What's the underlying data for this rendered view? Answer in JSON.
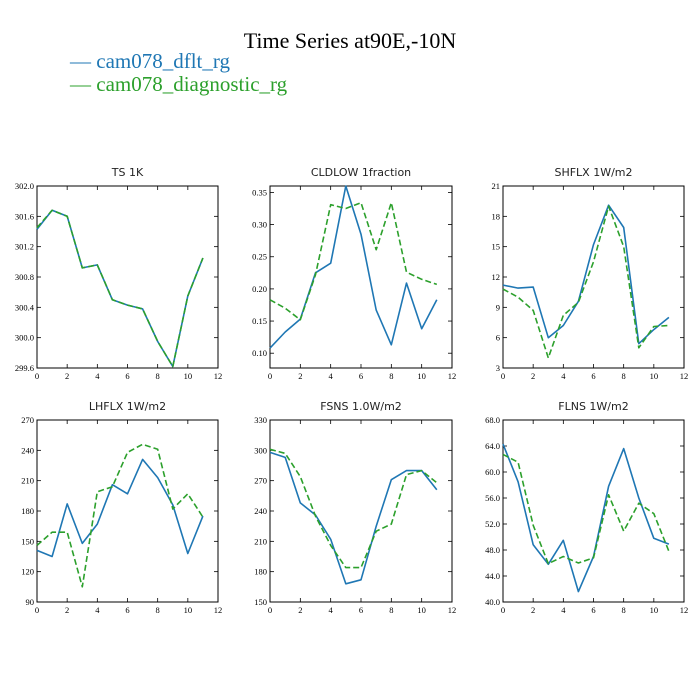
{
  "title": "Time Series at90E,-10N",
  "legend": [
    {
      "label": "— cam078_dflt_rg",
      "color": "#1f77b4"
    },
    {
      "label": "— cam078_diagnostic_rg",
      "color": "#2ca02c"
    }
  ],
  "chart_data": [
    {
      "type": "line",
      "title": "TS   1K",
      "x": [
        0,
        1,
        2,
        3,
        4,
        5,
        6,
        7,
        8,
        9,
        10,
        11
      ],
      "xlim": [
        0,
        12
      ],
      "xticks": [
        "0",
        "2",
        "4",
        "6",
        "8",
        "10",
        "12"
      ],
      "ylim": [
        299.6,
        302.0
      ],
      "yticks": [
        "299.6",
        "300.0",
        "300.4",
        "300.8",
        "301.2",
        "301.6",
        "302.0"
      ],
      "series": [
        {
          "name": "cam078_dflt_rg",
          "color": "#1f77b4",
          "dash": "",
          "values": [
            301.43,
            301.68,
            301.6,
            300.92,
            300.96,
            300.5,
            300.43,
            300.38,
            299.95,
            299.62,
            300.55,
            301.05
          ]
        },
        {
          "name": "cam078_diagnostic_rg",
          "color": "#2ca02c",
          "dash": "6,3",
          "values": [
            301.45,
            301.68,
            301.6,
            300.92,
            300.96,
            300.5,
            300.43,
            300.38,
            299.95,
            299.62,
            300.55,
            301.05
          ]
        }
      ]
    },
    {
      "type": "line",
      "title": "CLDLOW   1fraction",
      "x": [
        0,
        1,
        2,
        3,
        4,
        5,
        6,
        7,
        8,
        9,
        10,
        11
      ],
      "xlim": [
        0,
        12
      ],
      "xticks": [
        "0",
        "2",
        "4",
        "6",
        "8",
        "10",
        "12"
      ],
      "ylim": [
        0.077,
        0.36
      ],
      "yticks": [
        "0.10",
        "0.15",
        "0.20",
        "0.25",
        "0.30",
        "0.35"
      ],
      "ytick_values": [
        0.1,
        0.15,
        0.2,
        0.25,
        0.3,
        0.35
      ],
      "series": [
        {
          "name": "cam078_dflt_rg",
          "color": "#1f77b4",
          "dash": "",
          "values": [
            0.108,
            0.133,
            0.153,
            0.225,
            0.24,
            0.36,
            0.285,
            0.167,
            0.113,
            0.209,
            0.138,
            0.183
          ]
        },
        {
          "name": "cam078_diagnostic_rg",
          "color": "#2ca02c",
          "dash": "6,3",
          "values": [
            0.183,
            0.17,
            0.152,
            0.222,
            0.331,
            0.325,
            0.334,
            0.261,
            0.334,
            0.226,
            0.215,
            0.207
          ]
        }
      ]
    },
    {
      "type": "line",
      "title": "SHFLX   1W/m2",
      "x": [
        0,
        1,
        2,
        3,
        4,
        5,
        6,
        7,
        8,
        9,
        10,
        11
      ],
      "xlim": [
        0,
        12
      ],
      "xticks": [
        "0",
        "2",
        "4",
        "6",
        "8",
        "10",
        "12"
      ],
      "ylim": [
        3,
        21
      ],
      "yticks": [
        "3",
        "6",
        "9",
        "12",
        "15",
        "18",
        "21"
      ],
      "series": [
        {
          "name": "cam078_dflt_rg",
          "color": "#1f77b4",
          "dash": "",
          "values": [
            11.2,
            10.9,
            11.0,
            6.0,
            7.2,
            9.6,
            15.2,
            19.1,
            16.9,
            5.4,
            6.8,
            8.0
          ]
        },
        {
          "name": "cam078_diagnostic_rg",
          "color": "#2ca02c",
          "dash": "6,3",
          "values": [
            10.8,
            10.0,
            8.7,
            4.0,
            8.2,
            9.5,
            13.5,
            19.0,
            15.0,
            5.0,
            7.1,
            7.2
          ]
        }
      ]
    },
    {
      "type": "line",
      "title": "LHFLX   1W/m2",
      "x": [
        0,
        1,
        2,
        3,
        4,
        5,
        6,
        7,
        8,
        9,
        10,
        11
      ],
      "xlim": [
        0,
        12
      ],
      "xticks": [
        "0",
        "2",
        "4",
        "6",
        "8",
        "10",
        "12"
      ],
      "ylim": [
        90,
        270
      ],
      "yticks": [
        "90",
        "120",
        "150",
        "180",
        "210",
        "240",
        "270"
      ],
      "series": [
        {
          "name": "cam078_dflt_rg",
          "color": "#1f77b4",
          "dash": "",
          "values": [
            141,
            135,
            187,
            148,
            167,
            206,
            197,
            231,
            213,
            186,
            138,
            175
          ]
        },
        {
          "name": "cam078_diagnostic_rg",
          "color": "#2ca02c",
          "dash": "6,3",
          "values": [
            146,
            159,
            159,
            105,
            199,
            204,
            238,
            246,
            241,
            182,
            197,
            174
          ]
        }
      ]
    },
    {
      "type": "line",
      "title": "FSNS   1.0W/m2",
      "x": [
        0,
        1,
        2,
        3,
        4,
        5,
        6,
        7,
        8,
        9,
        10,
        11
      ],
      "xlim": [
        0,
        12
      ],
      "xticks": [
        "0",
        "2",
        "4",
        "6",
        "8",
        "10",
        "12"
      ],
      "ylim": [
        150,
        330
      ],
      "yticks": [
        "150",
        "180",
        "210",
        "240",
        "270",
        "300",
        "330"
      ],
      "series": [
        {
          "name": "cam078_dflt_rg",
          "color": "#1f77b4",
          "dash": "",
          "values": [
            298,
            293,
            248,
            236,
            212,
            168,
            172,
            225,
            271,
            280,
            280,
            261
          ]
        },
        {
          "name": "cam078_diagnostic_rg",
          "color": "#2ca02c",
          "dash": "6,3",
          "values": [
            301,
            297,
            274,
            235,
            206,
            184,
            184,
            220,
            227,
            276,
            280,
            268
          ]
        }
      ]
    },
    {
      "type": "line",
      "title": "FLNS   1W/m2",
      "x": [
        0,
        1,
        2,
        3,
        4,
        5,
        6,
        7,
        8,
        9,
        10,
        11
      ],
      "xlim": [
        0,
        12
      ],
      "xticks": [
        "0",
        "2",
        "4",
        "6",
        "8",
        "10",
        "12"
      ],
      "ylim": [
        40.0,
        68.0
      ],
      "yticks": [
        "40.0",
        "44.0",
        "48.0",
        "52.0",
        "56.0",
        "60.0",
        "64.0",
        "68.0"
      ],
      "series": [
        {
          "name": "cam078_dflt_rg",
          "color": "#1f77b4",
          "dash": "",
          "values": [
            64.3,
            58.5,
            48.8,
            45.8,
            49.5,
            41.6,
            47.0,
            57.8,
            63.6,
            56.0,
            49.8,
            48.9
          ]
        },
        {
          "name": "cam078_diagnostic_rg",
          "color": "#2ca02c",
          "dash": "6,3",
          "values": [
            62.7,
            61.5,
            51.8,
            45.9,
            47.0,
            46.0,
            46.8,
            56.5,
            50.9,
            55.2,
            53.6,
            47.8
          ]
        }
      ]
    }
  ]
}
